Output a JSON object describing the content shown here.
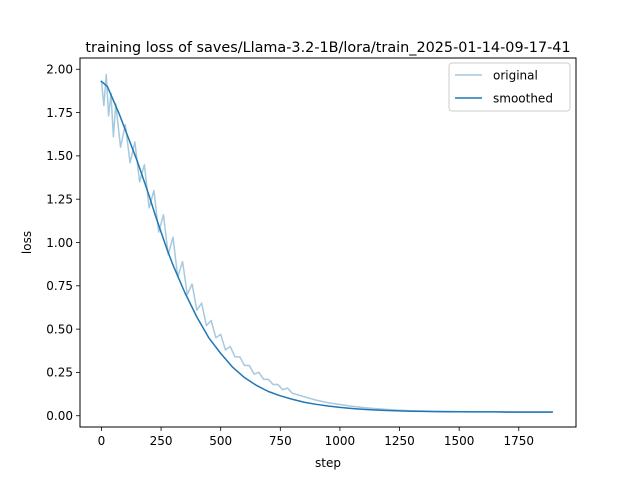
{
  "colors": {
    "original": "#a6c9de",
    "smoothed": "#1f77b4",
    "axes": "#000000",
    "background": "#ffffff"
  },
  "chart_data": {
    "type": "line",
    "title": "training loss of saves/Llama-3.2-1B/lora/train_2025-01-14-09-17-41",
    "xlabel": "step",
    "ylabel": "loss",
    "xlim": [
      -90,
      1990
    ],
    "ylim": [
      -0.065,
      2.065
    ],
    "xticks": [
      0,
      250,
      500,
      750,
      1000,
      1250,
      1500,
      1750
    ],
    "xtick_labels": [
      "0",
      "250",
      "500",
      "750",
      "1000",
      "1250",
      "1500",
      "1750"
    ],
    "yticks": [
      0.0,
      0.25,
      0.5,
      0.75,
      1.0,
      1.25,
      1.5,
      1.75,
      2.0
    ],
    "ytick_labels": [
      "0.00",
      "0.25",
      "0.50",
      "0.75",
      "1.00",
      "1.25",
      "1.50",
      "1.75",
      "2.00"
    ],
    "grid": false,
    "legend_position": "top-right",
    "series": [
      {
        "name": "original",
        "x": [
          0,
          10,
          20,
          30,
          40,
          50,
          60,
          80,
          100,
          120,
          140,
          160,
          180,
          200,
          220,
          240,
          260,
          280,
          300,
          320,
          340,
          360,
          380,
          400,
          420,
          440,
          460,
          480,
          500,
          520,
          540,
          560,
          580,
          600,
          620,
          640,
          660,
          680,
          700,
          720,
          740,
          760,
          780,
          800,
          850,
          900,
          950,
          1000,
          1050,
          1100,
          1150,
          1200,
          1250,
          1300,
          1350,
          1400,
          1450,
          1500,
          1550,
          1600,
          1650,
          1700,
          1750,
          1800,
          1850,
          1890
        ],
        "y": [
          1.93,
          1.79,
          1.97,
          1.73,
          1.86,
          1.61,
          1.8,
          1.55,
          1.68,
          1.46,
          1.58,
          1.35,
          1.45,
          1.2,
          1.3,
          1.06,
          1.16,
          0.93,
          1.03,
          0.8,
          0.89,
          0.7,
          0.76,
          0.61,
          0.65,
          0.52,
          0.55,
          0.45,
          0.47,
          0.38,
          0.4,
          0.34,
          0.34,
          0.29,
          0.29,
          0.24,
          0.25,
          0.21,
          0.21,
          0.18,
          0.18,
          0.15,
          0.16,
          0.13,
          0.11,
          0.09,
          0.075,
          0.065,
          0.055,
          0.047,
          0.041,
          0.036,
          0.032,
          0.029,
          0.027,
          0.026,
          0.025,
          0.024,
          0.024,
          0.023,
          0.023,
          0.023,
          0.022,
          0.022,
          0.022,
          0.022
        ]
      },
      {
        "name": "smoothed",
        "x": [
          0,
          25,
          50,
          75,
          100,
          125,
          150,
          175,
          200,
          225,
          250,
          275,
          300,
          350,
          400,
          450,
          500,
          550,
          600,
          650,
          700,
          750,
          800,
          850,
          900,
          950,
          1000,
          1050,
          1100,
          1150,
          1200,
          1250,
          1300,
          1350,
          1400,
          1450,
          1500,
          1550,
          1600,
          1650,
          1700,
          1750,
          1800,
          1850,
          1890
        ],
        "y": [
          1.93,
          1.9,
          1.82,
          1.74,
          1.65,
          1.56,
          1.47,
          1.37,
          1.27,
          1.16,
          1.06,
          0.96,
          0.87,
          0.71,
          0.57,
          0.45,
          0.36,
          0.28,
          0.22,
          0.175,
          0.14,
          0.115,
          0.095,
          0.078,
          0.066,
          0.056,
          0.048,
          0.042,
          0.037,
          0.033,
          0.03,
          0.028,
          0.026,
          0.025,
          0.024,
          0.023,
          0.023,
          0.022,
          0.022,
          0.022,
          0.021,
          0.021,
          0.021,
          0.021,
          0.021
        ]
      }
    ]
  }
}
